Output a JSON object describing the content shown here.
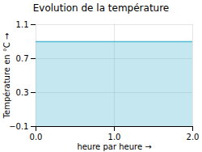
{
  "chart_data": {
    "type": "area",
    "title": "Evolution de la température",
    "xlabel": "heure par heure",
    "ylabel": "Température en °C",
    "x": [
      0,
      2
    ],
    "values": [
      0.9,
      0.9
    ],
    "color": "#55bbd4",
    "xlim": [
      0,
      2
    ],
    "ylim": [
      -0.1,
      1.1
    ],
    "xticks": [
      0,
      1,
      2
    ],
    "yticks": [
      -0.1,
      0.3,
      0.7,
      1.1
    ],
    "grid": true
  }
}
